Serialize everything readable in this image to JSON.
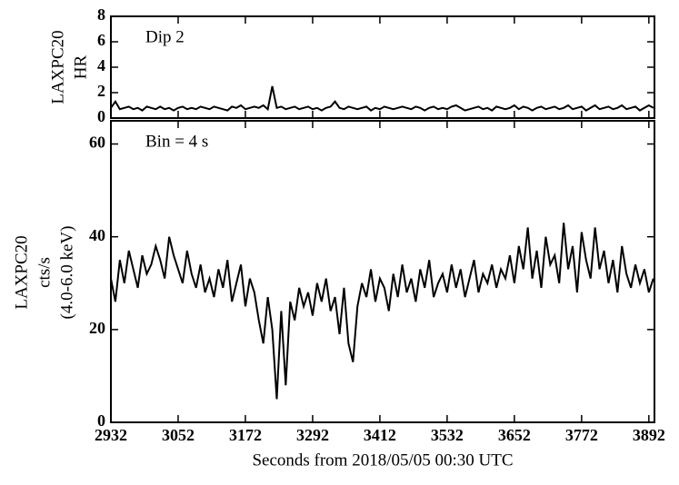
{
  "chart_data": [
    {
      "type": "line",
      "ylabel": [
        "LAXPC20",
        "HR"
      ],
      "annotation": "Dip 2",
      "color": "#000000",
      "xlim": [
        2932,
        3902
      ],
      "ylim": [
        0,
        8
      ],
      "yticks": [
        0,
        2,
        4,
        6,
        8
      ],
      "x": [
        2932,
        2940,
        2948,
        2956,
        2964,
        2972,
        2980,
        2988,
        2996,
        3004,
        3012,
        3020,
        3028,
        3036,
        3044,
        3052,
        3060,
        3068,
        3076,
        3084,
        3092,
        3100,
        3108,
        3116,
        3124,
        3132,
        3140,
        3148,
        3156,
        3164,
        3172,
        3180,
        3188,
        3196,
        3204,
        3212,
        3220,
        3228,
        3236,
        3244,
        3252,
        3260,
        3268,
        3276,
        3284,
        3292,
        3300,
        3308,
        3316,
        3324,
        3332,
        3340,
        3348,
        3356,
        3364,
        3372,
        3380,
        3388,
        3396,
        3404,
        3412,
        3420,
        3428,
        3436,
        3444,
        3452,
        3460,
        3468,
        3476,
        3484,
        3492,
        3500,
        3508,
        3516,
        3524,
        3532,
        3540,
        3548,
        3556,
        3564,
        3572,
        3580,
        3588,
        3596,
        3604,
        3612,
        3620,
        3628,
        3636,
        3644,
        3652,
        3660,
        3668,
        3676,
        3684,
        3692,
        3700,
        3708,
        3716,
        3724,
        3732,
        3740,
        3748,
        3756,
        3764,
        3772,
        3780,
        3788,
        3796,
        3804,
        3812,
        3820,
        3828,
        3836,
        3844,
        3852,
        3860,
        3868,
        3876,
        3884,
        3892,
        3900
      ],
      "values": [
        0.8,
        1.3,
        0.7,
        0.8,
        0.9,
        0.7,
        0.8,
        0.6,
        0.9,
        0.8,
        0.7,
        0.9,
        0.7,
        0.8,
        0.6,
        0.8,
        0.9,
        0.7,
        0.8,
        0.7,
        0.9,
        0.8,
        0.7,
        0.9,
        0.8,
        0.7,
        0.6,
        0.9,
        0.8,
        1.0,
        0.7,
        0.8,
        0.9,
        0.8,
        1.0,
        0.7,
        2.5,
        0.8,
        0.9,
        0.7,
        0.8,
        0.9,
        0.7,
        0.8,
        0.9,
        0.7,
        0.8,
        0.6,
        0.8,
        0.9,
        1.3,
        0.8,
        0.7,
        0.9,
        0.8,
        0.7,
        0.8,
        0.9,
        0.6,
        0.8,
        0.7,
        0.9,
        0.8,
        0.7,
        0.8,
        0.9,
        0.8,
        0.7,
        0.9,
        0.8,
        0.6,
        0.8,
        0.9,
        0.7,
        0.8,
        0.7,
        0.9,
        1.0,
        0.8,
        0.6,
        0.7,
        0.8,
        0.9,
        0.7,
        0.8,
        0.6,
        0.9,
        0.8,
        0.7,
        0.8,
        1.0,
        0.7,
        0.9,
        0.8,
        0.6,
        0.8,
        0.9,
        0.7,
        0.8,
        0.9,
        0.7,
        0.8,
        1.0,
        0.7,
        0.8,
        0.9,
        0.6,
        0.8,
        1.0,
        0.7,
        0.8,
        0.9,
        0.7,
        0.8,
        1.0,
        0.7,
        0.8,
        0.9,
        0.6,
        0.8,
        1.0,
        0.8
      ]
    },
    {
      "type": "line",
      "ylabel": [
        "LAXPC20",
        "cts/s",
        "(4.0-6.0 keV)"
      ],
      "annotation": "Bin = 4 s",
      "color": "#000000",
      "xlabel": "Seconds from 2018/05/05 00:30 UTC",
      "xlim": [
        2932,
        3902
      ],
      "xticks": [
        2932,
        3052,
        3172,
        3292,
        3412,
        3532,
        3652,
        3772,
        3892
      ],
      "ylim": [
        0,
        65
      ],
      "yticks": [
        0,
        20,
        40,
        60
      ],
      "x": [
        2932,
        2940,
        2948,
        2956,
        2964,
        2972,
        2980,
        2988,
        2996,
        3004,
        3012,
        3020,
        3028,
        3036,
        3044,
        3052,
        3060,
        3068,
        3076,
        3084,
        3092,
        3100,
        3108,
        3116,
        3124,
        3132,
        3140,
        3148,
        3156,
        3164,
        3172,
        3180,
        3188,
        3196,
        3204,
        3212,
        3220,
        3228,
        3236,
        3244,
        3252,
        3260,
        3268,
        3276,
        3284,
        3292,
        3300,
        3308,
        3316,
        3324,
        3332,
        3340,
        3348,
        3356,
        3364,
        3372,
        3380,
        3388,
        3396,
        3404,
        3412,
        3420,
        3428,
        3436,
        3444,
        3452,
        3460,
        3468,
        3476,
        3484,
        3492,
        3500,
        3508,
        3516,
        3524,
        3532,
        3540,
        3548,
        3556,
        3564,
        3572,
        3580,
        3588,
        3596,
        3604,
        3612,
        3620,
        3628,
        3636,
        3644,
        3652,
        3660,
        3668,
        3676,
        3684,
        3692,
        3700,
        3708,
        3716,
        3724,
        3732,
        3740,
        3748,
        3756,
        3764,
        3772,
        3780,
        3788,
        3796,
        3804,
        3812,
        3820,
        3828,
        3836,
        3844,
        3852,
        3860,
        3868,
        3876,
        3884,
        3892,
        3900
      ],
      "values": [
        31,
        26,
        35,
        30,
        37,
        33,
        29,
        36,
        32,
        34,
        38,
        35,
        31,
        40,
        36,
        33,
        30,
        37,
        32,
        29,
        34,
        28,
        31,
        27,
        33,
        29,
        35,
        26,
        30,
        34,
        25,
        31,
        28,
        22,
        17,
        27,
        20,
        5,
        24,
        8,
        26,
        22,
        29,
        25,
        28,
        23,
        30,
        26,
        31,
        24,
        27,
        19,
        29,
        17,
        13,
        25,
        30,
        27,
        33,
        26,
        31,
        29,
        24,
        32,
        27,
        34,
        28,
        31,
        26,
        33,
        29,
        35,
        27,
        30,
        32,
        28,
        34,
        29,
        33,
        27,
        31,
        35,
        28,
        32,
        30,
        34,
        29,
        33,
        31,
        36,
        30,
        38,
        33,
        42,
        31,
        37,
        29,
        40,
        34,
        36,
        30,
        43,
        33,
        38,
        28,
        41,
        35,
        31,
        42,
        33,
        37,
        30,
        35,
        28,
        38,
        32,
        29,
        34,
        30,
        33,
        28,
        31
      ]
    }
  ]
}
